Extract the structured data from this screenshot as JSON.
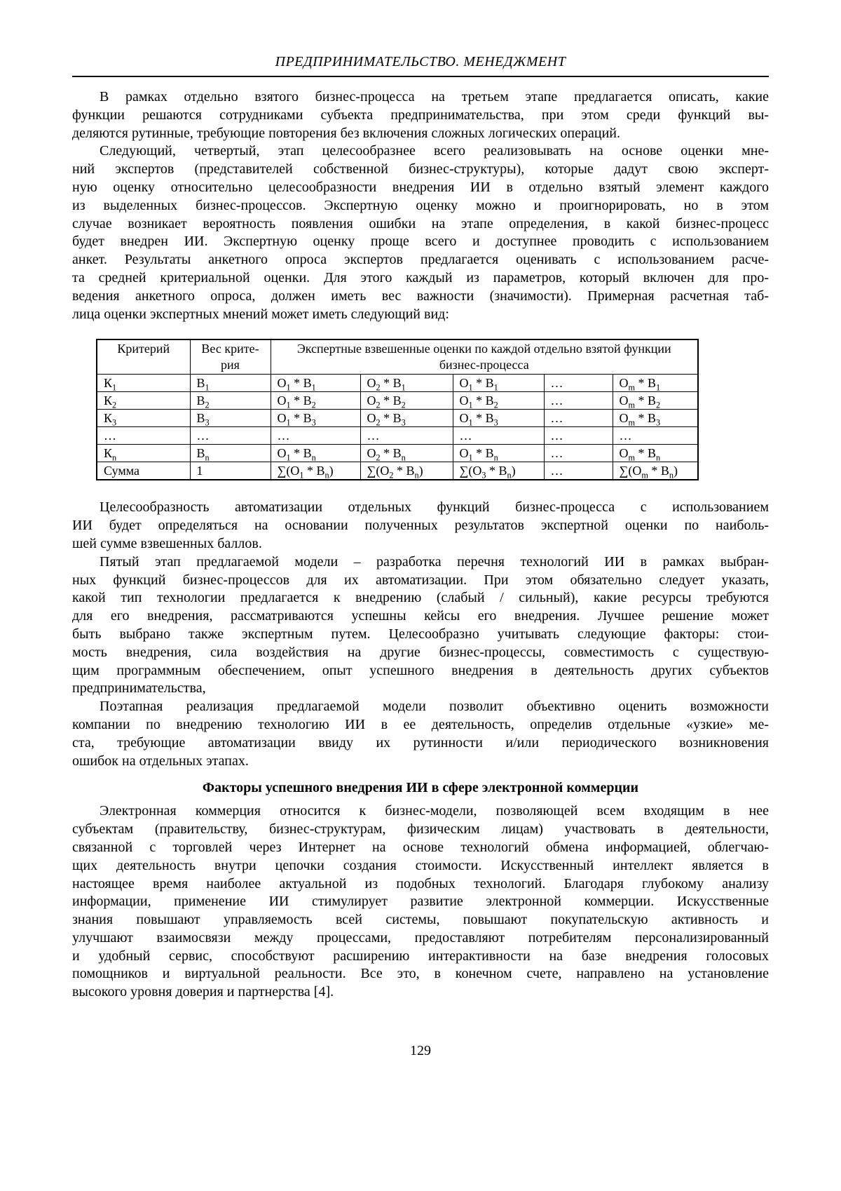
{
  "header": {
    "title": "ПРЕДПРИНИМАТЕЛЬСТВО. МЕНЕДЖМЕНТ"
  },
  "paragraphs": [
    {
      "lines": [
        "В рамках отдельно взятого бизнес-процесса на третьем этапе предлагается описать, какие",
        "функции решаются сотрудниками субъекта предпринимательства, при этом среди функций вы-",
        "деляются рутинные, требующие повторения без включения сложных логических операций."
      ]
    },
    {
      "lines": [
        "Следующий, четвертый, этап целесообразнее всего реализовывать на основе оценки мне-",
        "ний экспертов (представителей собственной бизнес-структуры), которые дадут свою эксперт-",
        "ную оценку относительно целесообразности внедрения ИИ в отдельно взятый элемент каждого",
        "из выделенных бизнес-процессов. Экспертную оценку можно и проигнорировать, но в этом",
        "случае возникает вероятность появления ошибки на этапе определения, в какой бизнес-процесс",
        "будет внедрен ИИ. Экспертную оценку проще всего и доступнее проводить с использованием",
        "анкет. Результаты анкетного опроса экспертов предлагается оценивать с использованием расче-",
        "та средней критериальной оценки. Для этого каждый из параметров, который включен для про-",
        "ведения анкетного опроса, должен иметь вес важности (значимости). Примерная расчетная таб-",
        "лица оценки экспертных мнений может иметь следующий вид:"
      ]
    }
  ],
  "table": {
    "col_headers": {
      "criterion": "Критерий",
      "weight_lines": [
        "Вес крите-",
        "рия"
      ],
      "expert_lines": [
        "Экспертные взвешенные оценки по каждой отдельно взятой функции",
        "бизнес-процесса"
      ]
    },
    "rows": [
      [
        "К_1",
        "В_1",
        "О_1 * В_1",
        "О_2 * В_1",
        "О_1 * В_1",
        "…",
        "О_m * В_1"
      ],
      [
        "К_2",
        "В_2",
        "О_1 * В_2",
        "О_2 * В_2",
        "О_1 * В_2",
        "…",
        "О_m * В_2"
      ],
      [
        "К_3",
        "В_3",
        "О_1 * В_3",
        "О_2 * В_3",
        "О_1 * В_3",
        "…",
        "О_m * В_3"
      ],
      [
        "…",
        "…",
        "…",
        "…",
        "…",
        "…",
        "…"
      ],
      [
        "К_n",
        "В_n",
        "О_1 * В_n",
        "О_2 * В_n",
        "О_1 * В_n",
        "…",
        "О_m * В_n"
      ],
      [
        "Сумма",
        "1",
        "∑(О_1 * В_n)",
        "∑(О_2 * В_n)",
        "∑(О_3 * В_n)",
        "…",
        "∑(О_m * В_n)"
      ]
    ]
  },
  "paragraphs_after_table": [
    {
      "lines": [
        "Целесообразность автоматизации отдельных функций бизнес-процесса с использованием",
        "ИИ будет определяться на основании полученных результатов экспертной оценки по наиболь-",
        "шей сумме взвешенных баллов."
      ]
    },
    {
      "lines": [
        "Пятый этап предлагаемой модели – разработка перечня технологий ИИ в рамках выбран-",
        "ных функций бизнес-процессов для их автоматизации. При этом обязательно следует указать,",
        "какой тип технологии предлагается к внедрению (слабый / сильный), какие ресурсы требуются",
        "для его внедрения, рассматриваются успешны кейсы его внедрения. Лучшее решение может",
        "быть выбрано также экспертным путем. Целесообразно учитывать следующие факторы: стои-",
        "мость внедрения, сила воздействия на другие бизнес-процессы, совместимость с существую-",
        "щим программным обеспечением, опыт успешного внедрения в деятельность других субъектов",
        "предпринимательства,"
      ]
    },
    {
      "lines": [
        "Поэтапная реализация предлагаемой модели позволит объективно оценить возможности",
        "компании по внедрению технологию ИИ в ее деятельность, определив отдельные «узкие» ме-",
        "ста, требующие автоматизации ввиду их рутинности и/или периодического возникновения",
        "ошибок на отдельных этапах."
      ]
    }
  ],
  "section_heading": "Факторы успешного внедрения ИИ в сфере электронной коммерции",
  "paragraphs_after_heading": [
    {
      "lines": [
        "Электронная коммерция относится к бизнес-модели, позволяющей всем входящим в нее",
        "субъектам (правительству, бизнес-структурам, физическим лицам) участвовать в деятельности,",
        "связанной с торговлей через Интернет на основе технологий обмена информацией, облегчаю-",
        "щих деятельность внутри цепочки создания стоимости. Искусственный интеллект является в",
        "настоящее время наиболее актуальной из подобных технологий. Благодаря глубокому анализу",
        "информации, применение ИИ стимулирует развитие электронной коммерции. Искусственные",
        "знания повышают управляемость всей системы, повышают покупательскую активность и",
        "улучшают взаимосвязи между процессами, предоставляют потребителям персонализированный",
        "и удобный сервис, способствуют расширению интерактивности на базе внедрения голосовых",
        "помощников и виртуальной реальности. Все это, в конечном счете, направлено на установление",
        "высокого уровня доверия и партнерства [4]."
      ]
    }
  ],
  "page_number": "129"
}
